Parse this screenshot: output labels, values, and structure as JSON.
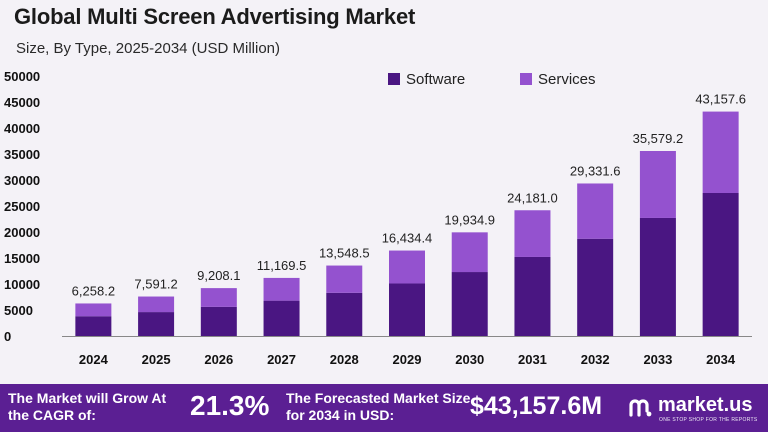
{
  "header": {
    "title": "Global Multi Screen Advertising Market",
    "subtitle": "Size, By Type, 2025-2034 (USD Million)"
  },
  "colors": {
    "software": "#4a1682",
    "services": "#9452cf",
    "footer": "#5b1f93",
    "axis": "#888888"
  },
  "chart_data": {
    "type": "bar",
    "stacked": true,
    "title": "Global Multi Screen Advertising Market",
    "subtitle": "Size, By Type, 2025-2034 (USD Million)",
    "categories": [
      "2024",
      "2025",
      "2026",
      "2027",
      "2028",
      "2029",
      "2030",
      "2031",
      "2032",
      "2033",
      "2034"
    ],
    "series": [
      {
        "name": "Software",
        "values": [
          3800,
          4600,
          5600,
          6800,
          8300,
          10100,
          12300,
          15200,
          18700,
          22700,
          27500
        ]
      },
      {
        "name": "Services",
        "values": [
          2458.2,
          2991.2,
          3608.1,
          4369.5,
          5248.5,
          6334.4,
          7634.9,
          8981.0,
          10631.6,
          12879.2,
          15657.6
        ]
      }
    ],
    "totals": [
      "6,258.2",
      "7,591.2",
      "9,208.1",
      "11,169.5",
      "13,548.5",
      "16,434.4",
      "19,934.9",
      "24,181.0",
      "29,331.6",
      "35,579.2",
      "43,157.6"
    ],
    "yticks": [
      "0",
      "5000",
      "10000",
      "15000",
      "20000",
      "25000",
      "30000",
      "35000",
      "40000",
      "45000",
      "50000"
    ],
    "ylim": [
      0,
      50000
    ],
    "xlabel": "",
    "ylabel": "",
    "legend_position": "top-right",
    "grid": false
  },
  "footer": {
    "cagr_label": "The Market will Grow At the CAGR of:",
    "cagr_value": "21.3%",
    "size_label": "The Forecasted Market Size for 2034 in USD:",
    "size_value": "$43,157.6M",
    "brand": "market.us",
    "tagline": "ONE STOP SHOP FOR THE REPORTS"
  }
}
